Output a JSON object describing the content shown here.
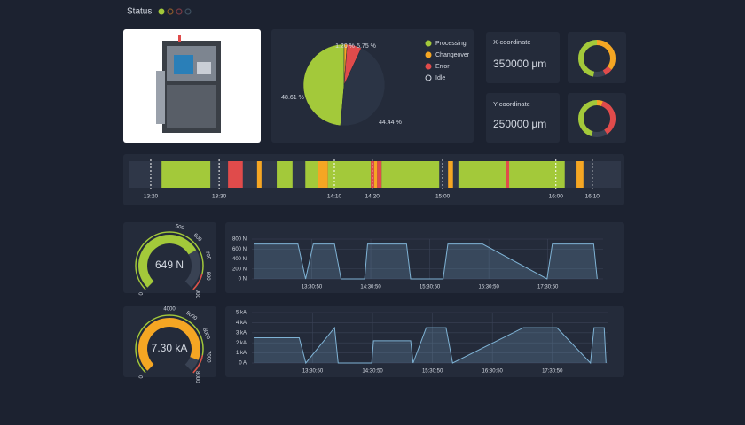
{
  "header": {
    "title": "Status"
  },
  "pie": {
    "type": "pie",
    "categories": [
      "Processing",
      "Changeover",
      "Error",
      "Idle"
    ],
    "values": [
      48.61,
      1.2,
      5.75,
      44.44
    ],
    "value_labels": [
      "48.61 %",
      "1.20 %",
      "5.75 %",
      "44.44 %"
    ],
    "colors": [
      "#a3c93a",
      "#f5a623",
      "#e04b4b",
      "#2b3445"
    ]
  },
  "coordinates": [
    {
      "label": "X-coordinate",
      "value": "350000 µm"
    },
    {
      "label": "Y-coordinate",
      "value": "250000 µm"
    }
  ],
  "timeline": {
    "type": "timeline",
    "xlim": [
      0,
      100
    ],
    "xticks": [
      {
        "value": 4.5,
        "label": "13:20"
      },
      {
        "value": 18.4,
        "label": "13:30"
      },
      {
        "value": 41.8,
        "label": "14:10"
      },
      {
        "value": 49.5,
        "label": "14:20"
      },
      {
        "value": 63.8,
        "label": "15:00"
      },
      {
        "value": 86.8,
        "label": "16:00"
      },
      {
        "value": 94.2,
        "label": "16:10"
      }
    ],
    "segments": [
      {
        "color": "#a3c93a",
        "start": 6.7,
        "end": 16.6
      },
      {
        "color": "#e04b4b",
        "start": 20.2,
        "end": 23.2
      },
      {
        "color": "#f5a623",
        "start": 26.1,
        "end": 27.0
      },
      {
        "color": "#a3c93a",
        "start": 30.1,
        "end": 33.3
      },
      {
        "color": "#a3c93a",
        "start": 35.9,
        "end": 38.4
      },
      {
        "color": "#f5a623",
        "start": 38.4,
        "end": 40.5
      },
      {
        "color": "#a3c93a",
        "start": 40.5,
        "end": 49.2
      },
      {
        "color": "#e04b4b",
        "start": 49.2,
        "end": 49.9
      },
      {
        "color": "#f5a623",
        "start": 49.9,
        "end": 50.5
      },
      {
        "color": "#e04b4b",
        "start": 50.5,
        "end": 51.4
      },
      {
        "color": "#a3c93a",
        "start": 51.4,
        "end": 63.1
      },
      {
        "color": "#f5a623",
        "start": 64.9,
        "end": 65.9
      },
      {
        "color": "#a3c93a",
        "start": 67.0,
        "end": 76.6
      },
      {
        "color": "#e04b4b",
        "start": 76.6,
        "end": 77.3
      },
      {
        "color": "#a3c93a",
        "start": 77.3,
        "end": 88.6
      },
      {
        "color": "#f5a623",
        "start": 91.0,
        "end": 92.4
      }
    ]
  },
  "gauges": [
    {
      "type": "gauge",
      "value": 649,
      "value_label": "649 N",
      "range": [
        0,
        900
      ],
      "ticks": [
        0,
        500,
        600,
        700,
        800,
        900
      ],
      "color": "#a3c93a"
    },
    {
      "type": "gauge",
      "value": 7300,
      "value_label": "7.30 kA",
      "range": [
        0,
        8000
      ],
      "ticks": [
        0,
        4000,
        5000,
        6000,
        7000,
        8000
      ],
      "color": "#f5a623"
    }
  ],
  "chart_data": [
    {
      "type": "line",
      "color": "#7fb3d5",
      "x": [
        12.53,
        13.28,
        13.41,
        13.54,
        13.9,
        14.01,
        14.41,
        14.46,
        15.12,
        15.19,
        15.74,
        15.82,
        16.41,
        17.5,
        17.59,
        18.29,
        18.35
      ],
      "values": [
        700,
        700,
        0,
        700,
        700,
        0,
        0,
        700,
        700,
        0,
        0,
        700,
        700,
        0,
        700,
        700,
        0
      ],
      "xlim": [
        12.5,
        18.45
      ],
      "xticks": [
        {
          "value": 13.514,
          "label": "13:30:50"
        },
        {
          "value": 14.514,
          "label": "14:30:50"
        },
        {
          "value": 15.514,
          "label": "15:30:50"
        },
        {
          "value": 16.514,
          "label": "16:30:50"
        },
        {
          "value": 17.514,
          "label": "17:30:50"
        }
      ],
      "ylim": [
        0,
        800
      ],
      "yticks": [
        {
          "value": 0,
          "label": "0 N"
        },
        {
          "value": 200,
          "label": "200 N"
        },
        {
          "value": 400,
          "label": "400 N"
        },
        {
          "value": 600,
          "label": "600 N"
        },
        {
          "value": 800,
          "label": "800 N"
        }
      ],
      "grid": true
    },
    {
      "type": "line",
      "color": "#7fb3d5",
      "x": [
        12.53,
        13.29,
        13.4,
        13.88,
        13.94,
        14.5,
        14.53,
        15.15,
        15.19,
        15.41,
        15.74,
        15.85,
        17.03,
        17.59,
        18.15,
        18.21,
        18.38,
        18.41
      ],
      "values": [
        2500,
        2500,
        0,
        3500,
        0,
        0,
        2200,
        2200,
        0,
        3500,
        3500,
        0,
        3500,
        3500,
        0,
        3500,
        3500,
        0
      ],
      "xlim": [
        12.5,
        18.45
      ],
      "xticks": [
        {
          "value": 13.514,
          "label": "13:30:50"
        },
        {
          "value": 14.514,
          "label": "14:30:50"
        },
        {
          "value": 15.514,
          "label": "15:30:50"
        },
        {
          "value": 16.514,
          "label": "16:30:50"
        },
        {
          "value": 17.514,
          "label": "17:30:50"
        }
      ],
      "ylim": [
        0,
        5000
      ],
      "yticks": [
        {
          "value": 0,
          "label": "0 A"
        },
        {
          "value": 1000,
          "label": "1 kA"
        },
        {
          "value": 2000,
          "label": "2 kA"
        },
        {
          "value": 3000,
          "label": "3 kA"
        },
        {
          "value": 4000,
          "label": "4 kA"
        },
        {
          "value": 5000,
          "label": "5 kA"
        }
      ],
      "grid": true
    }
  ]
}
